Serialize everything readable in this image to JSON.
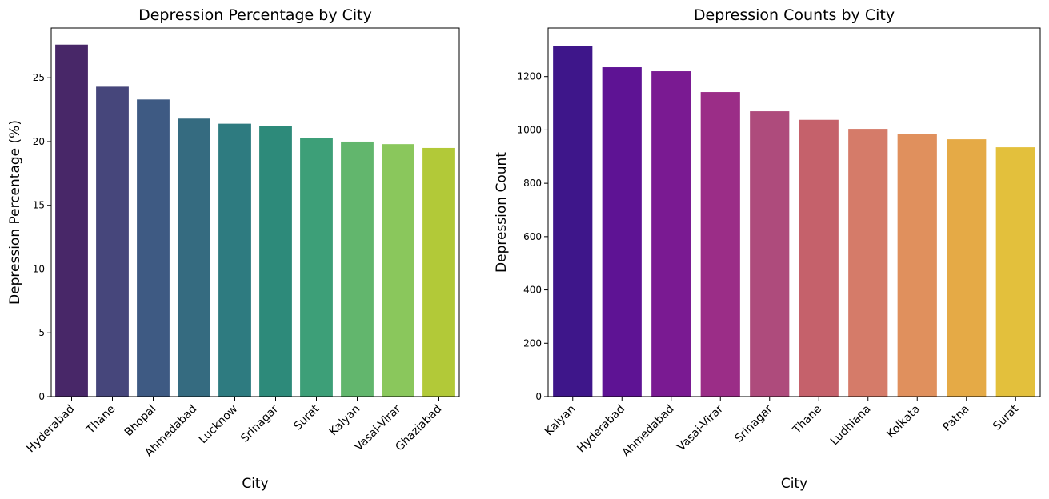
{
  "chart_data": [
    {
      "type": "bar",
      "title": "Depression Percentage by City",
      "xlabel": "City",
      "ylabel": "Depression Percentage (%)",
      "categories": [
        "Hyderabad",
        "Thane",
        "Bhopal",
        "Ahmedabad",
        "Lucknow",
        "Srinagar",
        "Surat",
        "Kalyan",
        "Vasai-Virar",
        "Ghaziabad"
      ],
      "values": [
        27.6,
        24.3,
        23.3,
        21.8,
        21.4,
        21.2,
        20.3,
        20.0,
        19.8,
        19.5
      ],
      "ylim": [
        0,
        28.9
      ],
      "yticks": [
        0,
        5,
        10,
        15,
        20,
        25
      ],
      "colors": [
        "#482768",
        "#46467b",
        "#3e5a83",
        "#356b80",
        "#2e7b80",
        "#2d8a7a",
        "#3d9f78",
        "#62b66d",
        "#8ac75c",
        "#b2c938"
      ],
      "grid": false
    },
    {
      "type": "bar",
      "title": "Depression Counts by City",
      "xlabel": "City",
      "ylabel": "Depression Count",
      "categories": [
        "Kalyan",
        "Hyderabad",
        "Ahmedabad",
        "Vasai-Virar",
        "Srinagar",
        "Thane",
        "Ludhiana",
        "Kolkata",
        "Patna",
        "Surat"
      ],
      "values": [
        1316,
        1235,
        1220,
        1142,
        1070,
        1038,
        1004,
        984,
        965,
        935
      ],
      "ylim": [
        0,
        1382
      ],
      "yticks": [
        0,
        200,
        400,
        600,
        800,
        1000,
        1200
      ],
      "colors": [
        "#3e168a",
        "#5e1394",
        "#7a1a92",
        "#9b2d87",
        "#ae4b7c",
        "#c5616b",
        "#d57b69",
        "#e0905d",
        "#e5aa46",
        "#e3c03c"
      ],
      "grid": false
    }
  ]
}
